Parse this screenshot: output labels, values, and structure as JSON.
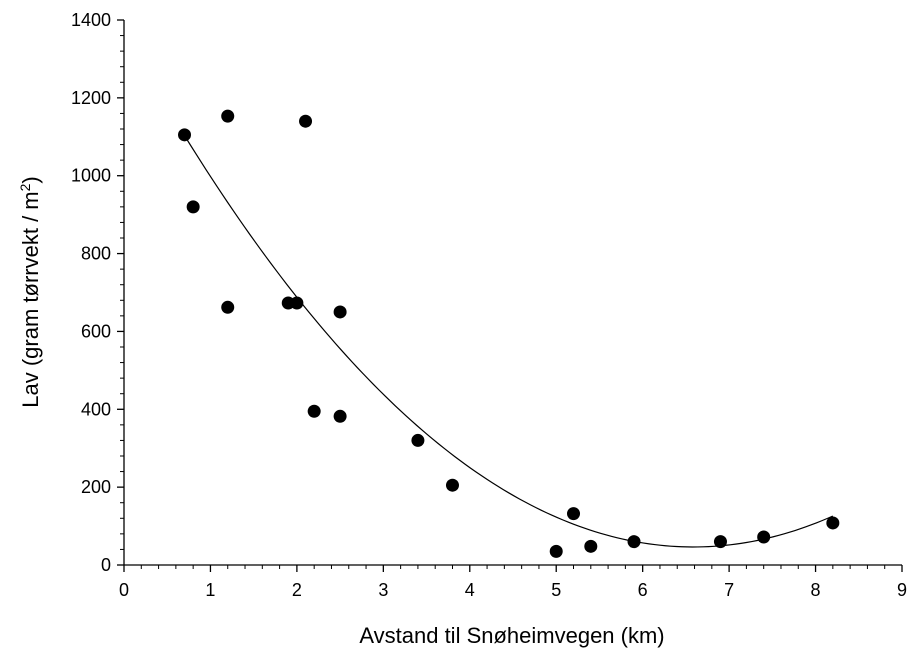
{
  "chart_data": {
    "type": "scatter",
    "xlabel": "Avstand til Snøheimvegen (km)",
    "ylabel_main": "Lav (gram tørrvekt / m",
    "ylabel_sup": "2",
    "ylabel_close": ")",
    "xlim": [
      0,
      9
    ],
    "ylim": [
      0,
      1400
    ],
    "xticks": [
      "0",
      "1",
      "2",
      "3",
      "4",
      "5",
      "6",
      "7",
      "8",
      "9"
    ],
    "yticks": [
      "0",
      "200",
      "400",
      "600",
      "800",
      "1000",
      "1200",
      "1400"
    ],
    "grid": false,
    "points": [
      {
        "x": 0.7,
        "y": 1105
      },
      {
        "x": 0.8,
        "y": 920
      },
      {
        "x": 1.2,
        "y": 1153
      },
      {
        "x": 1.2,
        "y": 662
      },
      {
        "x": 1.9,
        "y": 673
      },
      {
        "x": 2.0,
        "y": 673
      },
      {
        "x": 2.1,
        "y": 1140
      },
      {
        "x": 2.2,
        "y": 395
      },
      {
        "x": 2.5,
        "y": 650
      },
      {
        "x": 2.5,
        "y": 382
      },
      {
        "x": 3.4,
        "y": 320
      },
      {
        "x": 3.8,
        "y": 205
      },
      {
        "x": 5.0,
        "y": 35
      },
      {
        "x": 5.2,
        "y": 132
      },
      {
        "x": 5.4,
        "y": 48
      },
      {
        "x": 5.9,
        "y": 60
      },
      {
        "x": 6.9,
        "y": 60
      },
      {
        "x": 7.4,
        "y": 72
      },
      {
        "x": 8.2,
        "y": 108
      }
    ],
    "fit_curve": {
      "kind": "quadratic",
      "x_range": [
        0.7,
        8.2
      ],
      "coefficients": [
        1369.5,
        -401.85,
        30.51
      ]
    }
  }
}
